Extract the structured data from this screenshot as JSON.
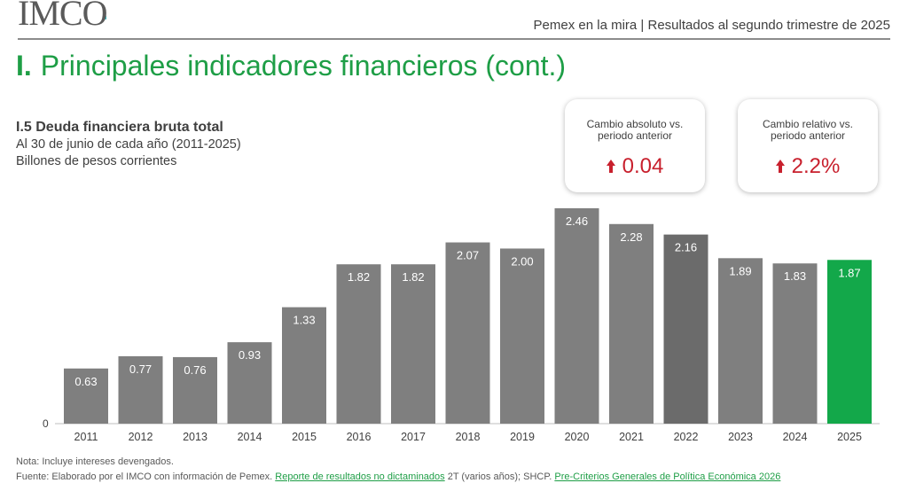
{
  "header": {
    "logo_text": "IMCO",
    "title": "Pemex en la mira | Resultados al segundo trimestre de 2025"
  },
  "section": {
    "number": "I.",
    "title": "Principales indicadores financieros (cont.)"
  },
  "chart_data": {
    "type": "bar",
    "title": "I.5 Deuda financiera bruta total",
    "subtitle": "Al 30 de junio de cada año (2011-2025)",
    "units": "Billones de pesos corrientes",
    "categories": [
      "2011",
      "2012",
      "2013",
      "2014",
      "2015",
      "2016",
      "2017",
      "2018",
      "2019",
      "2020",
      "2021",
      "2022",
      "2023",
      "2024",
      "2025"
    ],
    "values": [
      0.63,
      0.77,
      0.76,
      0.93,
      1.33,
      1.82,
      1.82,
      2.07,
      2.0,
      2.46,
      2.28,
      2.16,
      1.89,
      1.83,
      1.87
    ],
    "value_labels": [
      "0.63",
      "0.77",
      "0.76",
      "0.93",
      "1.33",
      "1.82",
      "1.82",
      "2.07",
      "2.00",
      "2.46",
      "2.28",
      "2.16",
      "1.89",
      "1.83",
      "1.87"
    ],
    "y_tick_label": "0",
    "ylim": [
      0,
      2.5
    ],
    "grid": false,
    "legend": "none",
    "colors": {
      "default": "#7f7f7f",
      "darker": "#6b6b6b",
      "highlight": "#13a84a"
    },
    "bar_color_key": [
      "default",
      "default",
      "default",
      "default",
      "default",
      "default",
      "default",
      "default",
      "default",
      "default",
      "default",
      "darker",
      "default",
      "default",
      "highlight"
    ]
  },
  "cards": {
    "absolute": {
      "label_line1": "Cambio absoluto vs.",
      "label_line2": "periodo anterior",
      "value": "0.04",
      "direction": "up"
    },
    "relative": {
      "label_line1": "Cambio relativo vs.",
      "label_line2": "periodo anterior",
      "value": "2.2%",
      "direction": "up"
    }
  },
  "footer": {
    "note": "Nota: Incluye intereses devengados.",
    "source_prefix": "Fuente: Elaborado por el IMCO con información de Pemex. ",
    "source_link1": "Reporte de resultados no dictaminados",
    "source_mid": " 2T (varios años); SHCP. ",
    "source_link2": "Pre-Criterios Generales de Política Económica 2026"
  },
  "theme": {
    "accent": "#1e9e46",
    "negative": "#c8202d"
  }
}
